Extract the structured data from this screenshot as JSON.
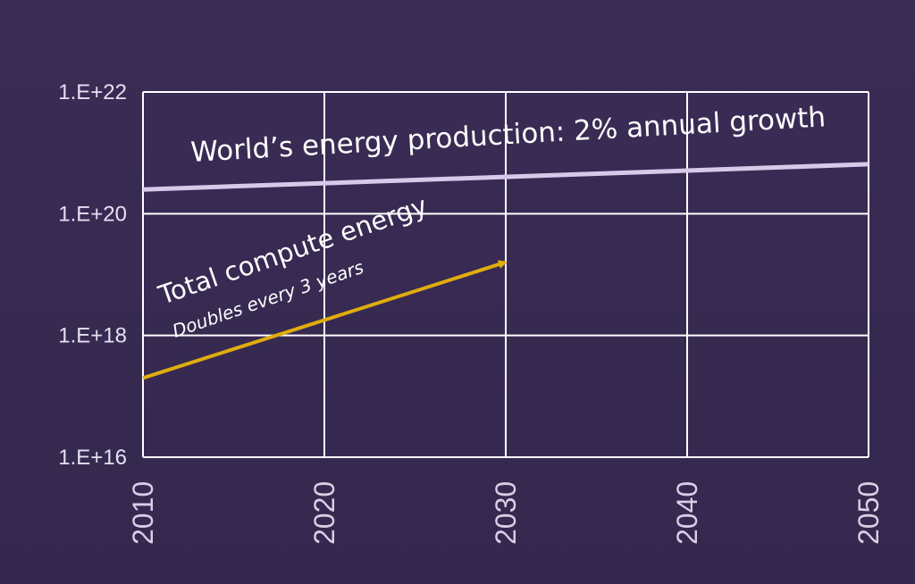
{
  "chart_data": {
    "type": "line",
    "y_scale": "log",
    "xlim": [
      2010,
      2050
    ],
    "ylim": [
      1e+16,
      1e+22
    ],
    "x_ticks": [
      {
        "value": 2010,
        "label": "2010"
      },
      {
        "value": 2020,
        "label": "2020"
      },
      {
        "value": 2030,
        "label": "2030"
      },
      {
        "value": 2040,
        "label": "2040"
      },
      {
        "value": 2050,
        "label": "2050"
      }
    ],
    "y_ticks": [
      {
        "value": 1e+16,
        "label": "1.E+16"
      },
      {
        "value": 1e+18,
        "label": "1.E+18"
      },
      {
        "value": 1e+20,
        "label": "1.E+20"
      },
      {
        "value": 1e+22,
        "label": "1.E+22"
      }
    ],
    "grid": true,
    "series": [
      {
        "key": "energy",
        "color": "#d8c8ea",
        "x": [
          2010,
          2050
        ],
        "y": [
          2.5e+20,
          6.5e+20
        ]
      },
      {
        "key": "compute",
        "color": "#e0ad0e",
        "arrow": true,
        "x": [
          2010,
          2030
        ],
        "y": [
          2e+17,
          1.6e+19
        ]
      }
    ],
    "annotations": {
      "energy": "World’s energy production: 2% annual growth",
      "compute_title": "Total compute energy",
      "compute_subtitle": "Doubles every 3 years"
    }
  }
}
